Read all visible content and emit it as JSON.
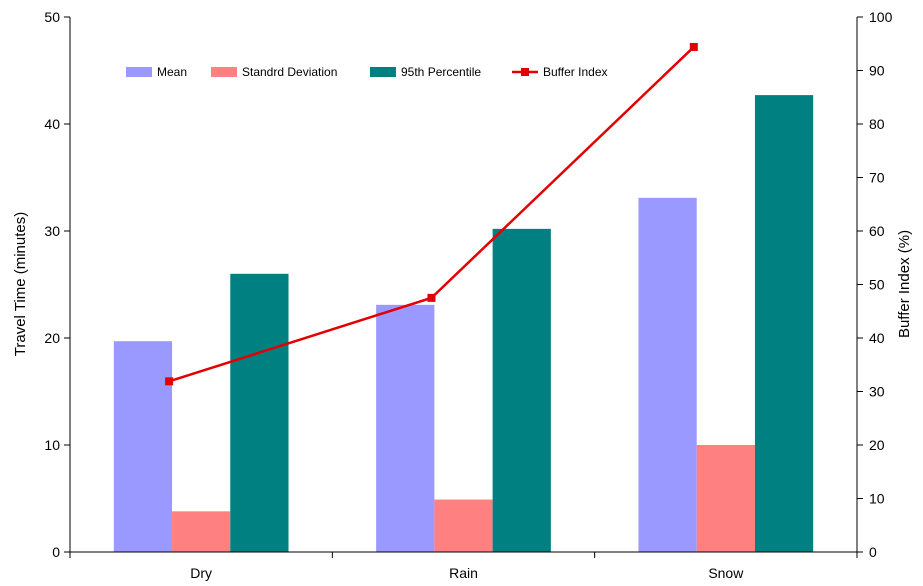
{
  "chart_data": {
    "type": "bar",
    "categories": [
      "Dry",
      "Rain",
      "Snow"
    ],
    "series": [
      {
        "name": "Mean",
        "type": "bar",
        "axis": "left",
        "color": "#9999ff",
        "values": [
          19.7,
          23.1,
          33.1
        ]
      },
      {
        "name": "Standrd Deviation",
        "type": "bar",
        "axis": "left",
        "color": "#ff8080",
        "values": [
          3.8,
          4.9,
          10.0
        ]
      },
      {
        "name": "95th Percentile",
        "type": "bar",
        "axis": "left",
        "color": "#008080",
        "values": [
          26.0,
          30.2,
          42.7
        ]
      },
      {
        "name": "Buffer Index",
        "type": "line",
        "axis": "right",
        "color": "#e30000",
        "marker": "square",
        "values": [
          31.9,
          47.5,
          94.4
        ]
      }
    ],
    "xlabel": "",
    "ylabel": "Travel Time (minutes)",
    "y2label": "Buffer Index (%)",
    "ylim": [
      0,
      50
    ],
    "y2lim": [
      0,
      100
    ],
    "yticks": [
      "0",
      "10",
      "20",
      "30",
      "40",
      "50"
    ],
    "y2ticks": [
      "0",
      "10",
      "20",
      "30",
      "40",
      "50",
      "60",
      "70",
      "80",
      "90",
      "100"
    ],
    "legend_position": "top",
    "grid": false
  }
}
